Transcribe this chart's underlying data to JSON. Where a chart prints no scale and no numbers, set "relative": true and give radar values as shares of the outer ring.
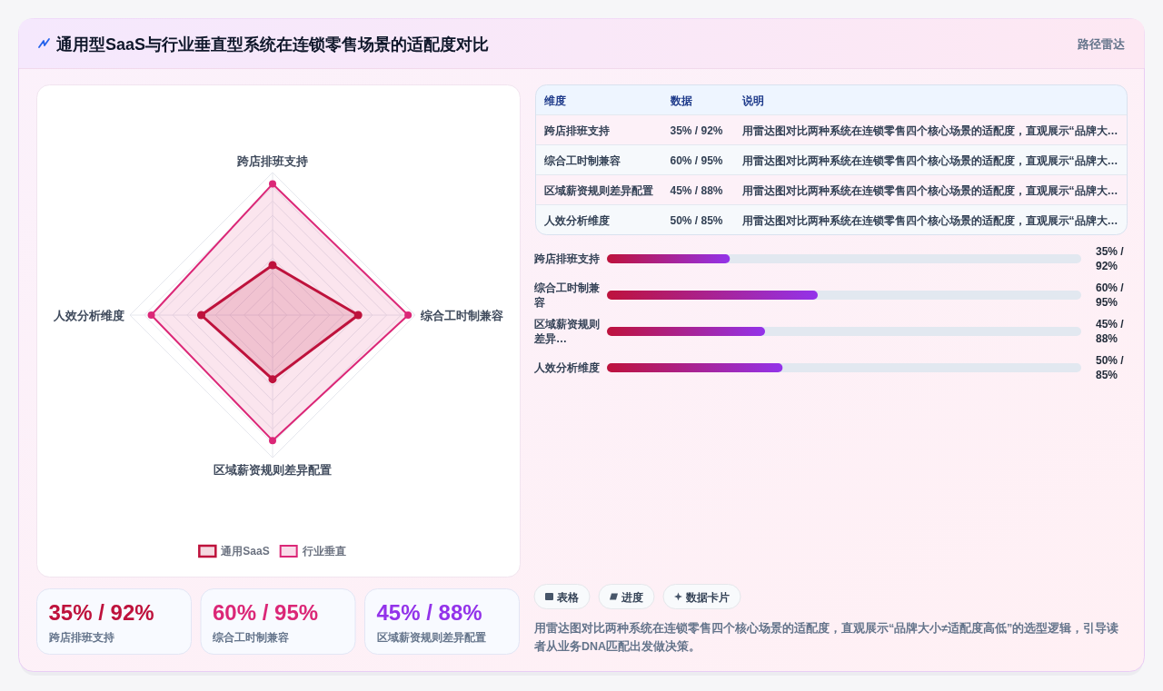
{
  "chart_data": [
    {
      "type": "radar",
      "title": "通用型SaaS与行业垂直型系统在连锁零售场景的适配度对比",
      "annotations": [
        "路径雷达"
      ],
      "categories": [
        "跨店排班支持",
        "综合工时制兼容",
        "区域薪资规则差异配置",
        "人效分析维度"
      ],
      "relative": true,
      "grid": true,
      "marker": "circle",
      "legend": "bottom",
      "series": [
        {
          "name": "通用SaaS",
          "color": "#be123c",
          "values": [
            0.35,
            0.6,
            0.45,
            0.5
          ]
        },
        {
          "name": "行业垂直",
          "color": "#db2777",
          "values": [
            0.92,
            0.95,
            0.88,
            0.85
          ]
        }
      ]
    },
    {
      "type": "other",
      "categories": [
        "维度",
        "数据",
        "说明"
      ],
      "cell_labels": [
        [
          "跨店排班支持",
          "35% / 92%",
          "用雷达图对比两种系统在连锁零售四个核心场景的适配度，直观展示“品牌大…"
        ],
        [
          "综合工时制兼容",
          "60% / 95%",
          "用雷达图对比两种系统在连锁零售四个核心场景的适配度，直观展示“品牌大…"
        ],
        [
          "区域薪资规则差异配置",
          "45% / 88%",
          "用雷达图对比两种系统在连锁零售四个核心场景的适配度，直观展示“品牌大…"
        ],
        [
          "人效分析维度",
          "50% / 85%",
          "用雷达图对比两种系统在连锁零售四个核心场景的适配度，直观展示“品牌大…"
        ]
      ]
    },
    {
      "type": "bar",
      "orientation": "horizontal",
      "color": "#be123c",
      "xlim": [
        0,
        135
      ],
      "categories": [
        "跨店排班支持",
        "综合工时制兼容",
        "区域薪资规则差异…",
        "人效分析维度"
      ],
      "values": [
        35,
        60,
        45,
        50
      ],
      "value_labels": [
        "35% / 92%",
        "60% / 95%",
        "45% / 88%",
        "50% / 85%"
      ],
      "annotations": [
        "表格",
        "进度",
        "数据卡片",
        "用雷达图对比两种系统在连锁零售四个核心场景的适配度，直观展示“品牌大小≠适配度高低”的选型逻辑，引导读者从业务DNA匹配出发做决策。"
      ]
    },
    {
      "type": "other",
      "categories": [
        "跨店排班支持",
        "综合工时制兼容",
        "区域薪资规则差异配置"
      ],
      "value_labels": [
        "35% / 92%",
        "60% / 95%",
        "45% / 88%"
      ]
    }
  ]
}
